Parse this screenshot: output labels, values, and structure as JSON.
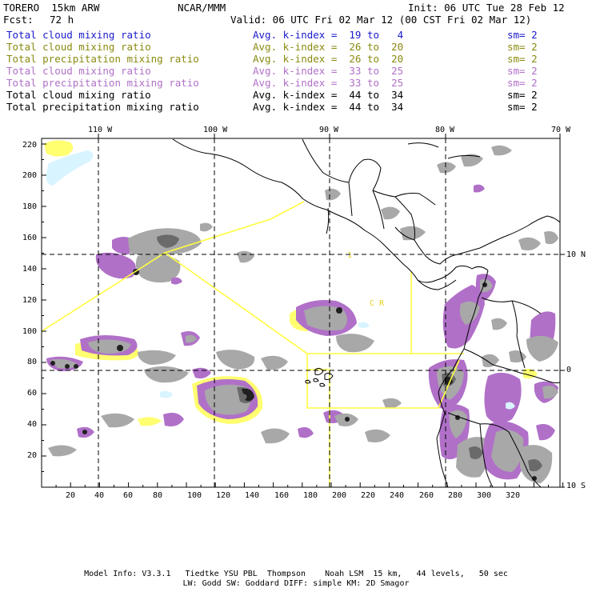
{
  "header": {
    "model": "TORERO  15km ARW",
    "org": "NCAR/MMM",
    "init": "Init: 06 UTC Tue 28 Feb 12",
    "fcst_label": "Fcst:",
    "fcst_value": "72 h",
    "valid": "Valid: 06 UTC Fri 02 Mar 12 (00 CST Fri 02 Mar 12)"
  },
  "legend": [
    {
      "field": "Total cloud mixing ratio",
      "kindex": "Avg. k-index =  19 to   4",
      "sm": "sm= 2",
      "color": "#1a1acc"
    },
    {
      "field": "Total cloud mixing ratio",
      "kindex": "Avg. k-index =  26 to  20",
      "sm": "sm= 2",
      "color": "#8a8a10"
    },
    {
      "field": "Total precipitation mixing ratio",
      "kindex": "Avg. k-index =  26 to  20",
      "sm": "sm= 2",
      "color": "#8a8a10"
    },
    {
      "field": "Total cloud mixing ratio",
      "kindex": "Avg. k-index =  33 to  25",
      "sm": "sm= 2",
      "color": "#b070c8"
    },
    {
      "field": "Total precipitation mixing ratio",
      "kindex": "Avg. k-index =  33 to  25",
      "sm": "sm= 2",
      "color": "#b070c8"
    },
    {
      "field": "Total cloud mixing ratio",
      "kindex": "Avg. k-index =  44 to  34",
      "sm": "sm= 2",
      "color": "#000000"
    },
    {
      "field": "Total precipitation mixing ratio",
      "kindex": "Avg. k-index =  44 to  34",
      "sm": "sm= 2",
      "color": "#000000"
    }
  ],
  "map": {
    "longitude_labels": [
      "110 W",
      "100 W",
      "90 W",
      "80 W",
      "70 W"
    ],
    "latitude_labels": [
      "10 N",
      "0",
      "10 S"
    ],
    "x_ticks": [
      "20",
      "40",
      "60",
      "80",
      "100",
      "120",
      "140",
      "160",
      "180",
      "200",
      "220",
      "240",
      "260",
      "280",
      "300",
      "320"
    ],
    "y_ticks": [
      "20",
      "40",
      "60",
      "80",
      "100",
      "120",
      "140",
      "160",
      "180",
      "200",
      "220"
    ],
    "annotation_text": "C R",
    "colors": {
      "gray": "#a8a8a8",
      "dark_gray": "#6a6a6a",
      "core": "#202020",
      "magenta": "#b070c8",
      "yellow": "#ffff70",
      "cyan": "#d8f4ff",
      "boundary": "#ffff40",
      "coast": "#000000",
      "grid": "#000000"
    }
  },
  "footer": {
    "line1": "Model Info: V3.3.1   Tiedtke YSU PBL  Thompson    Noah LSM  15 km,   44 levels,   50 sec",
    "line2": "LW: Godd SW: Goddard DIFF: simple KM: 2D Smagor"
  }
}
